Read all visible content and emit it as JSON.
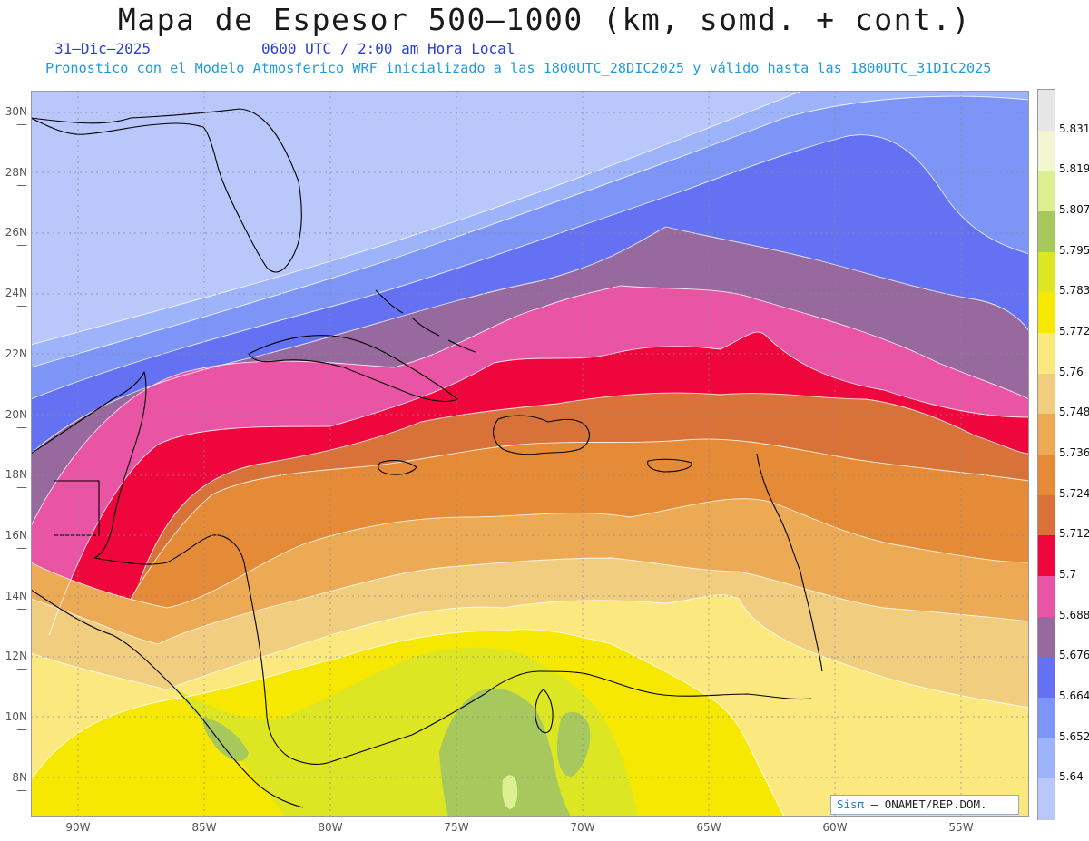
{
  "title": "Mapa de Espesor 500—1000 (km, somd. + cont.)",
  "subtitle_date": "31—Dic—2025",
  "subtitle_time": "0600 UTC / 2:00 am Hora Local",
  "subtitle_run": "Pronostico con el Modelo Atmosferico WRF inicializado a las 1800UTC_28DIC2025 y válido hasta las  1800UTC_31DIC2025",
  "credit": {
    "brand": "Sisπ",
    "text": "— ONAMET/REP.DOM."
  },
  "lat_labels": [
    "30N",
    "28N",
    "26N",
    "24N",
    "22N",
    "20N",
    "18N",
    "16N",
    "14N",
    "12N",
    "10N",
    "8N"
  ],
  "lon_labels": [
    "90W",
    "85W",
    "80W",
    "75W",
    "70W",
    "65W",
    "60W",
    "55W"
  ],
  "colorbar": {
    "levels": [
      "5.831",
      "5.819",
      "5.807",
      "5.795",
      "5.783",
      "5.772",
      "5.76",
      "5.748",
      "5.736",
      "5.724",
      "5.712",
      "5.7",
      "5.688",
      "5.676",
      "5.664",
      "5.652",
      "5.64"
    ],
    "colors": [
      "#e6e6e6",
      "#f2f6d3",
      "#dcf092",
      "#a6c85c",
      "#dde623",
      "#f6e800",
      "#fbe97f",
      "#f1cd80",
      "#ecaa55",
      "#e58b38",
      "#d97238",
      "#ef063d",
      "#e955a4",
      "#98699e",
      "#6471f2",
      "#7e95f8",
      "#9eb4fa",
      "#b9c7fb"
    ]
  },
  "colors": {
    "land_outline": "#000000",
    "grid": "#8a8a8a",
    "date_text": "#2a3fd8",
    "run_text": "#1f9bdc"
  }
}
